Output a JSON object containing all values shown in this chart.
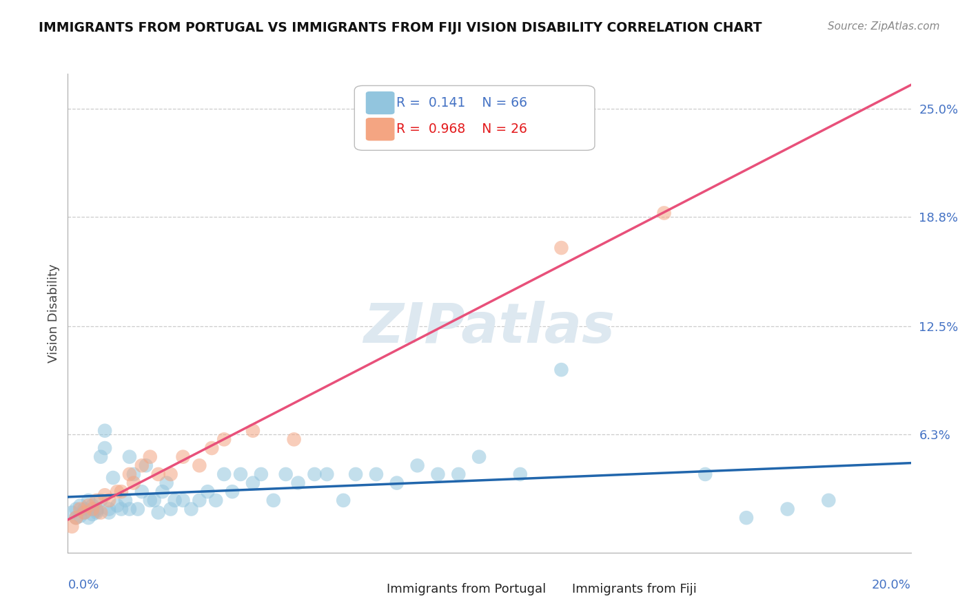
{
  "title": "IMMIGRANTS FROM PORTUGAL VS IMMIGRANTS FROM FIJI VISION DISABILITY CORRELATION CHART",
  "source": "Source: ZipAtlas.com",
  "ylabel": "Vision Disability",
  "xlim": [
    0.0,
    0.205
  ],
  "ylim": [
    -0.005,
    0.27
  ],
  "ytick_vals": [
    0.063,
    0.125,
    0.188,
    0.25
  ],
  "ytick_labels": [
    "6.3%",
    "12.5%",
    "18.8%",
    "25.0%"
  ],
  "xtick_left_label": "0.0%",
  "xtick_right_label": "20.0%",
  "portugal_R": 0.141,
  "portugal_N": 66,
  "fiji_R": 0.968,
  "fiji_N": 26,
  "portugal_scatter_color": "#92c5de",
  "fiji_scatter_color": "#f4a582",
  "portugal_line_color": "#2166ac",
  "fiji_line_color": "#e8507a",
  "watermark_text": "ZIPatlas",
  "watermark_color": "#dde8f0",
  "legend_portugal_label": "Immigrants from Portugal",
  "legend_fiji_label": "Immigrants from Fiji",
  "portugal_x": [
    0.001,
    0.002,
    0.002,
    0.003,
    0.003,
    0.004,
    0.004,
    0.005,
    0.005,
    0.006,
    0.006,
    0.007,
    0.007,
    0.007,
    0.008,
    0.008,
    0.009,
    0.009,
    0.01,
    0.01,
    0.011,
    0.012,
    0.013,
    0.014,
    0.015,
    0.015,
    0.016,
    0.017,
    0.018,
    0.019,
    0.02,
    0.021,
    0.022,
    0.023,
    0.024,
    0.025,
    0.026,
    0.028,
    0.03,
    0.032,
    0.034,
    0.036,
    0.038,
    0.04,
    0.042,
    0.045,
    0.047,
    0.05,
    0.053,
    0.056,
    0.06,
    0.063,
    0.067,
    0.07,
    0.075,
    0.08,
    0.085,
    0.09,
    0.095,
    0.1,
    0.11,
    0.12,
    0.155,
    0.165,
    0.175,
    0.185
  ],
  "portugal_y": [
    0.018,
    0.015,
    0.02,
    0.016,
    0.022,
    0.018,
    0.02,
    0.025,
    0.015,
    0.017,
    0.022,
    0.019,
    0.02,
    0.018,
    0.025,
    0.05,
    0.065,
    0.055,
    0.02,
    0.018,
    0.038,
    0.022,
    0.02,
    0.025,
    0.02,
    0.05,
    0.04,
    0.02,
    0.03,
    0.045,
    0.025,
    0.025,
    0.018,
    0.03,
    0.035,
    0.02,
    0.025,
    0.025,
    0.02,
    0.025,
    0.03,
    0.025,
    0.04,
    0.03,
    0.04,
    0.035,
    0.04,
    0.025,
    0.04,
    0.035,
    0.04,
    0.04,
    0.025,
    0.04,
    0.04,
    0.035,
    0.045,
    0.04,
    0.04,
    0.05,
    0.04,
    0.1,
    0.04,
    0.015,
    0.02,
    0.025
  ],
  "fiji_x": [
    0.001,
    0.002,
    0.003,
    0.004,
    0.005,
    0.006,
    0.007,
    0.008,
    0.009,
    0.01,
    0.012,
    0.013,
    0.015,
    0.016,
    0.018,
    0.02,
    0.022,
    0.025,
    0.028,
    0.032,
    0.035,
    0.038,
    0.045,
    0.055,
    0.12,
    0.145
  ],
  "fiji_y": [
    0.01,
    0.015,
    0.02,
    0.018,
    0.022,
    0.02,
    0.025,
    0.018,
    0.028,
    0.025,
    0.03,
    0.03,
    0.04,
    0.035,
    0.045,
    0.05,
    0.04,
    0.04,
    0.05,
    0.045,
    0.055,
    0.06,
    0.065,
    0.06,
    0.17,
    0.19
  ]
}
